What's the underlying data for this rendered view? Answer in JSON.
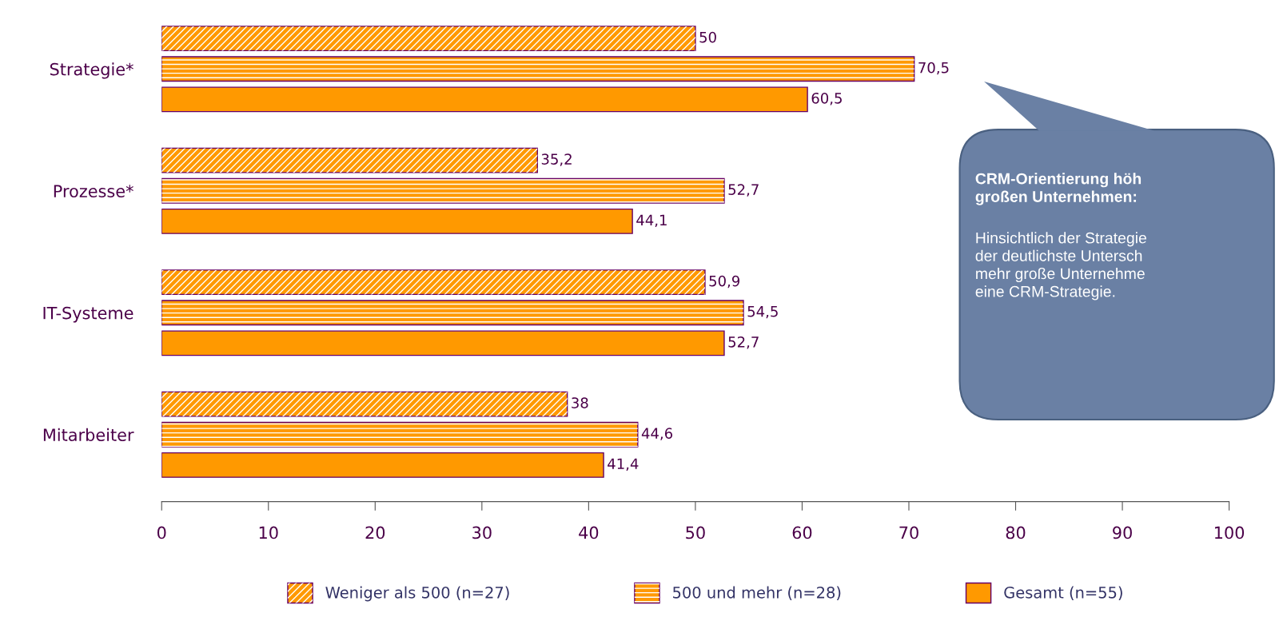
{
  "chart_data": {
    "type": "bar",
    "orientation": "horizontal",
    "categories": [
      "Strategie*",
      "Prozesse*",
      "IT-Systeme",
      "Mitarbeiter"
    ],
    "series": [
      {
        "name": "Weniger als 500 (n=27)",
        "color": "#ff9900",
        "values": [
          50,
          35.2,
          50.9,
          38
        ],
        "value_labels": [
          "50",
          "35,2",
          "50,9",
          "38"
        ]
      },
      {
        "name": "500 und mehr (n=28)",
        "color": "#ff9900",
        "values": [
          70.5,
          52.7,
          54.5,
          44.6
        ],
        "value_labels": [
          "70,5",
          "52,7",
          "54,5",
          "44,6"
        ]
      },
      {
        "name": "Gesamt (n=55)",
        "color": "#ff9900",
        "values": [
          60.5,
          44.1,
          52.7,
          41.4
        ],
        "value_labels": [
          "60,5",
          "44,1",
          "52,7",
          "41,4"
        ]
      }
    ],
    "xlim": [
      0,
      100
    ],
    "xticks": [
      0,
      10,
      20,
      30,
      40,
      50,
      60,
      70,
      80,
      90,
      100
    ],
    "grid": false,
    "legend": "bottom",
    "annotations": [
      "CRM-Orientierung höh\ngroßen Unternehmen:",
      "Hinsichtlich der Strategie\nder deutlichste Untersch\nmehr große Unternehme\neine CRM-Strategie."
    ]
  }
}
